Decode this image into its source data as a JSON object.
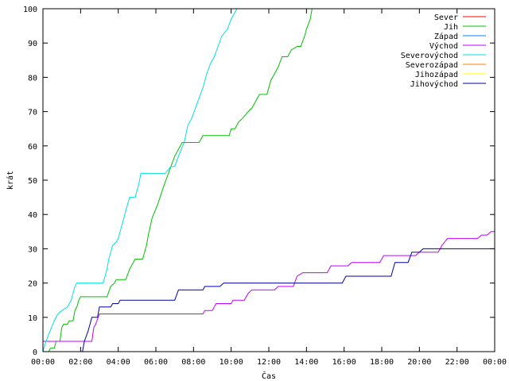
{
  "chart_data": {
    "type": "line",
    "title": "",
    "xlabel": "Čas",
    "ylabel": "krát",
    "xlim": [
      0,
      24
    ],
    "ylim": [
      0,
      100
    ],
    "x_ticks": [
      {
        "value": 0,
        "label": "00:00"
      },
      {
        "value": 2,
        "label": "02:00"
      },
      {
        "value": 4,
        "label": "04:00"
      },
      {
        "value": 6,
        "label": "06:00"
      },
      {
        "value": 8,
        "label": "08:00"
      },
      {
        "value": 10,
        "label": "10:00"
      },
      {
        "value": 12,
        "label": "12:00"
      },
      {
        "value": 14,
        "label": "14:00"
      },
      {
        "value": 16,
        "label": "16:00"
      },
      {
        "value": 18,
        "label": "18:00"
      },
      {
        "value": 20,
        "label": "20:00"
      },
      {
        "value": 22,
        "label": "22:00"
      },
      {
        "value": 24,
        "label": "00:00"
      }
    ],
    "y_ticks": [
      0,
      10,
      20,
      30,
      40,
      50,
      60,
      70,
      80,
      90,
      100
    ],
    "grid": false,
    "legend_position": "top-right",
    "series": [
      {
        "name": "Sever",
        "color": "#ff0000",
        "points": []
      },
      {
        "name": "Jih",
        "color": "#00c000",
        "points": [
          [
            0.0,
            0
          ],
          [
            0.3,
            0
          ],
          [
            0.4,
            1
          ],
          [
            0.6,
            1
          ],
          [
            0.7,
            3
          ],
          [
            0.9,
            3
          ],
          [
            1.0,
            7
          ],
          [
            1.1,
            8
          ],
          [
            1.3,
            8
          ],
          [
            1.4,
            9
          ],
          [
            1.6,
            9
          ],
          [
            1.7,
            12
          ],
          [
            1.8,
            13
          ],
          [
            1.9,
            15
          ],
          [
            2.0,
            16
          ],
          [
            3.4,
            16
          ],
          [
            3.6,
            19
          ],
          [
            3.8,
            20
          ],
          [
            3.9,
            21
          ],
          [
            4.4,
            21
          ],
          [
            4.6,
            24
          ],
          [
            4.7,
            25
          ],
          [
            4.9,
            27
          ],
          [
            5.3,
            27
          ],
          [
            5.5,
            31
          ],
          [
            5.6,
            34
          ],
          [
            5.8,
            39
          ],
          [
            6.1,
            43
          ],
          [
            6.4,
            48
          ],
          [
            6.6,
            51
          ],
          [
            6.8,
            54
          ],
          [
            7.0,
            57
          ],
          [
            7.2,
            59
          ],
          [
            7.4,
            61
          ],
          [
            8.3,
            61
          ],
          [
            8.5,
            63
          ],
          [
            9.9,
            63
          ],
          [
            10.0,
            65
          ],
          [
            10.2,
            65
          ],
          [
            10.4,
            67
          ],
          [
            10.6,
            68
          ],
          [
            10.9,
            70
          ],
          [
            11.1,
            71
          ],
          [
            11.3,
            73
          ],
          [
            11.5,
            75
          ],
          [
            11.9,
            75
          ],
          [
            12.0,
            77
          ],
          [
            12.1,
            79
          ],
          [
            12.3,
            81
          ],
          [
            12.5,
            83
          ],
          [
            12.7,
            86
          ],
          [
            13.0,
            86
          ],
          [
            13.2,
            88
          ],
          [
            13.5,
            89
          ],
          [
            13.7,
            89
          ],
          [
            13.9,
            92
          ],
          [
            14.0,
            94
          ],
          [
            14.2,
            97
          ],
          [
            14.3,
            100
          ]
        ]
      },
      {
        "name": "Západ",
        "color": "#0080ff",
        "points": []
      },
      {
        "name": "Východ",
        "color": "#c000ff",
        "points": [
          [
            0.0,
            3
          ],
          [
            2.6,
            3
          ],
          [
            2.7,
            7
          ],
          [
            2.8,
            8
          ],
          [
            3.0,
            11
          ],
          [
            8.5,
            11
          ],
          [
            8.6,
            12
          ],
          [
            9.0,
            12
          ],
          [
            9.2,
            14
          ],
          [
            10.0,
            14
          ],
          [
            10.1,
            15
          ],
          [
            10.7,
            15
          ],
          [
            10.9,
            17
          ],
          [
            11.1,
            18
          ],
          [
            12.3,
            18
          ],
          [
            12.5,
            19
          ],
          [
            13.3,
            19
          ],
          [
            13.5,
            22
          ],
          [
            13.8,
            23
          ],
          [
            15.1,
            23
          ],
          [
            15.3,
            25
          ],
          [
            16.2,
            25
          ],
          [
            16.4,
            26
          ],
          [
            17.9,
            26
          ],
          [
            18.1,
            28
          ],
          [
            19.8,
            28
          ],
          [
            20.0,
            29
          ],
          [
            21.0,
            29
          ],
          [
            21.2,
            31
          ],
          [
            21.5,
            33
          ],
          [
            23.1,
            33
          ],
          [
            23.3,
            34
          ],
          [
            23.6,
            34
          ],
          [
            23.8,
            35
          ],
          [
            24.0,
            35
          ]
        ]
      },
      {
        "name": "Severovýchod",
        "color": "#00e0e0",
        "points": [
          [
            0.0,
            0
          ],
          [
            0.1,
            2
          ],
          [
            0.3,
            5
          ],
          [
            0.6,
            9
          ],
          [
            0.8,
            11
          ],
          [
            1.0,
            12
          ],
          [
            1.3,
            13
          ],
          [
            1.5,
            15
          ],
          [
            1.7,
            19
          ],
          [
            1.8,
            20
          ],
          [
            3.2,
            20
          ],
          [
            3.4,
            24
          ],
          [
            3.5,
            27
          ],
          [
            3.7,
            31
          ],
          [
            3.9,
            32
          ],
          [
            4.0,
            33
          ],
          [
            4.2,
            37
          ],
          [
            4.4,
            41
          ],
          [
            4.6,
            45
          ],
          [
            4.9,
            45
          ],
          [
            5.1,
            49
          ],
          [
            5.2,
            52
          ],
          [
            6.5,
            52
          ],
          [
            6.8,
            54
          ],
          [
            7.0,
            54
          ],
          [
            7.2,
            57
          ],
          [
            7.5,
            61
          ],
          [
            7.7,
            66
          ],
          [
            7.9,
            68
          ],
          [
            8.1,
            71
          ],
          [
            8.3,
            74
          ],
          [
            8.5,
            77
          ],
          [
            8.7,
            81
          ],
          [
            8.9,
            84
          ],
          [
            9.1,
            86
          ],
          [
            9.3,
            89
          ],
          [
            9.5,
            92
          ],
          [
            9.8,
            94
          ],
          [
            10.0,
            97
          ],
          [
            10.3,
            100
          ]
        ]
      },
      {
        "name": "Severozápad",
        "color": "#ff8000",
        "points": []
      },
      {
        "name": "Jihozápad",
        "color": "#ffff00",
        "points": []
      },
      {
        "name": "Jihovýchod",
        "color": "#0000a0",
        "points": [
          [
            0.0,
            0
          ],
          [
            2.1,
            0
          ],
          [
            2.2,
            3
          ],
          [
            2.4,
            6
          ],
          [
            2.6,
            10
          ],
          [
            2.9,
            10
          ],
          [
            3.0,
            13
          ],
          [
            3.6,
            13
          ],
          [
            3.7,
            14
          ],
          [
            4.0,
            14
          ],
          [
            4.1,
            15
          ],
          [
            7.0,
            15
          ],
          [
            7.2,
            18
          ],
          [
            8.5,
            18
          ],
          [
            8.6,
            19
          ],
          [
            9.4,
            19
          ],
          [
            9.6,
            20
          ],
          [
            13.5,
            20
          ],
          [
            15.9,
            20
          ],
          [
            16.1,
            22
          ],
          [
            18.5,
            22
          ],
          [
            18.7,
            26
          ],
          [
            19.4,
            26
          ],
          [
            19.6,
            29
          ],
          [
            20.0,
            29
          ],
          [
            20.2,
            30
          ],
          [
            24.0,
            30
          ]
        ]
      }
    ]
  }
}
